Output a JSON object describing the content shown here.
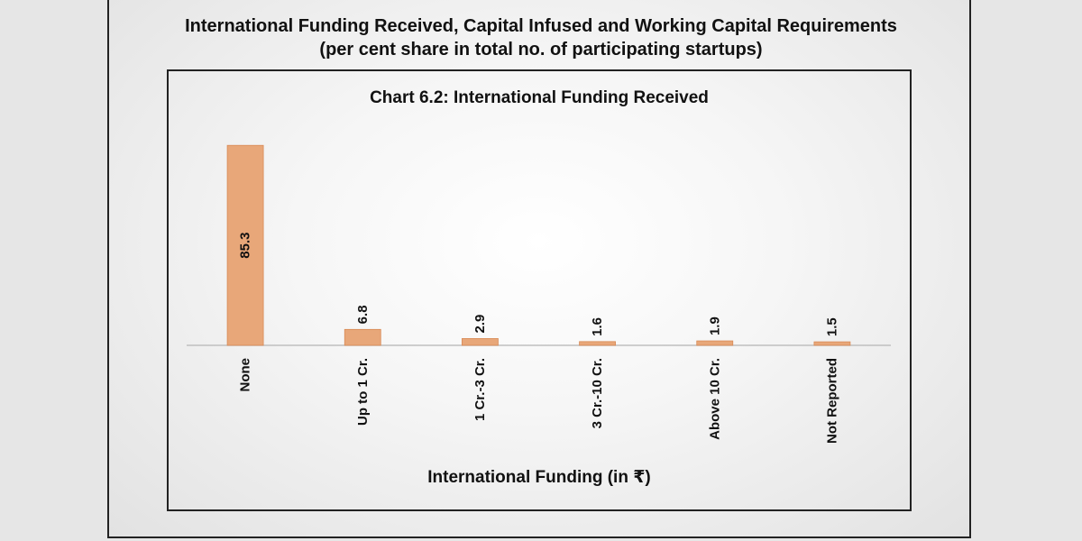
{
  "page": {
    "title_line1": "International Funding Received, Capital Infused and Working Capital Requirements",
    "title_line2": "(per cent share in total no. of participating startups)"
  },
  "chart_data": {
    "type": "bar",
    "title": "Chart 6.2:  International Funding Received",
    "xlabel": "International Funding (in ₹)",
    "ylabel": "",
    "categories": [
      "None",
      "Up to 1 Cr.",
      "1 Cr.-3 Cr.",
      "3 Cr.-10 Cr.",
      "Above 10 Cr.",
      "Not Reported"
    ],
    "values": [
      85.3,
      6.8,
      2.9,
      1.6,
      1.9,
      1.5
    ],
    "ylim": [
      0,
      90
    ],
    "grid": false,
    "legend": "none",
    "bar_color": "#e8a779",
    "bar_edge_color": "#d88a55"
  }
}
